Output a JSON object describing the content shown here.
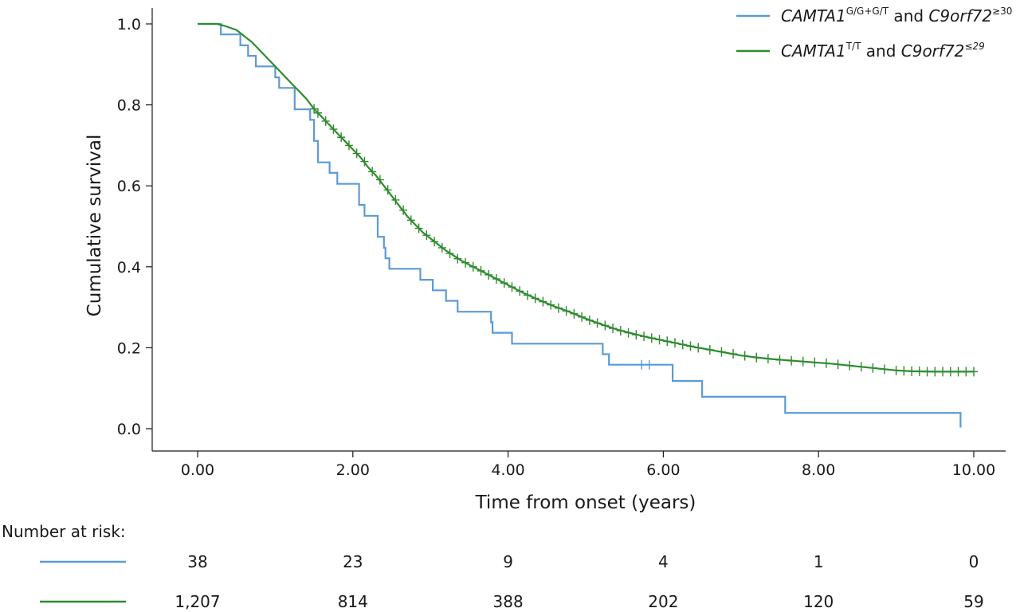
{
  "chart_data": {
    "type": "line",
    "ylabel": "Cumulative survival",
    "xlabel": "Time from onset (years)",
    "xlim": [
      0,
      10
    ],
    "ylim": [
      0,
      1
    ],
    "x_ticks": [
      "0.00",
      "2.00",
      "4.00",
      "6.00",
      "8.00",
      "10.00"
    ],
    "y_ticks": [
      "0.0",
      "0.2",
      "0.4",
      "0.6",
      "0.8",
      "1.0"
    ],
    "grid": false,
    "legend_position": "top-right",
    "series": [
      {
        "color": "#5b9bd5",
        "legend": {
          "name1": "CAMTA1",
          "sup1": "G/G+G/T",
          "mid": " and ",
          "name2": "C9orf72",
          "sup2": "≥30"
        },
        "risk_color": "#5b9bd5",
        "points": [
          [
            0,
            1.0
          ],
          [
            0.3,
            1.0
          ],
          [
            0.3,
            0.974
          ],
          [
            0.55,
            0.974
          ],
          [
            0.55,
            0.947
          ],
          [
            0.65,
            0.947
          ],
          [
            0.65,
            0.921
          ],
          [
            0.75,
            0.921
          ],
          [
            0.75,
            0.895
          ],
          [
            1.0,
            0.895
          ],
          [
            1.0,
            0.868
          ],
          [
            1.05,
            0.868
          ],
          [
            1.05,
            0.842
          ],
          [
            1.25,
            0.842
          ],
          [
            1.25,
            0.789
          ],
          [
            1.45,
            0.789
          ],
          [
            1.45,
            0.763
          ],
          [
            1.5,
            0.763
          ],
          [
            1.5,
            0.711
          ],
          [
            1.55,
            0.711
          ],
          [
            1.55,
            0.658
          ],
          [
            1.7,
            0.658
          ],
          [
            1.7,
            0.632
          ],
          [
            1.8,
            0.632
          ],
          [
            1.8,
            0.605
          ],
          [
            2.08,
            0.605
          ],
          [
            2.08,
            0.553
          ],
          [
            2.15,
            0.553
          ],
          [
            2.15,
            0.526
          ],
          [
            2.32,
            0.526
          ],
          [
            2.32,
            0.474
          ],
          [
            2.4,
            0.474
          ],
          [
            2.4,
            0.447
          ],
          [
            2.42,
            0.447
          ],
          [
            2.42,
            0.421
          ],
          [
            2.47,
            0.421
          ],
          [
            2.47,
            0.395
          ],
          [
            2.87,
            0.395
          ],
          [
            2.87,
            0.368
          ],
          [
            3.03,
            0.368
          ],
          [
            3.03,
            0.342
          ],
          [
            3.2,
            0.342
          ],
          [
            3.2,
            0.316
          ],
          [
            3.35,
            0.316
          ],
          [
            3.35,
            0.289
          ],
          [
            3.78,
            0.289
          ],
          [
            3.78,
            0.263
          ],
          [
            3.8,
            0.263
          ],
          [
            3.8,
            0.237
          ],
          [
            4.05,
            0.237
          ],
          [
            4.05,
            0.21
          ],
          [
            5.22,
            0.21
          ],
          [
            5.22,
            0.184
          ],
          [
            5.3,
            0.184
          ],
          [
            5.3,
            0.158
          ],
          [
            6.12,
            0.158
          ],
          [
            6.12,
            0.118
          ],
          [
            6.5,
            0.118
          ],
          [
            6.5,
            0.079
          ],
          [
            7.57,
            0.079
          ],
          [
            7.57,
            0.039
          ],
          [
            9.83,
            0.039
          ],
          [
            9.83,
            0.003
          ]
        ],
        "censored": [
          [
            5.72,
            0.158
          ],
          [
            5.82,
            0.158
          ]
        ],
        "at_risk": [
          "38",
          "23",
          "9",
          "4",
          "1",
          "0"
        ]
      },
      {
        "color": "#2e8b2e",
        "legend": {
          "name1": "CAMTA1",
          "sup1": "T/T",
          "mid": " and ",
          "name2": "C9orf72",
          "sup2": "≤29"
        },
        "risk_color": "#2e8b2e",
        "points": [
          [
            0,
            1.0
          ],
          [
            0.25,
            1.0
          ],
          [
            0.35,
            0.995
          ],
          [
            0.5,
            0.985
          ],
          [
            0.6,
            0.97
          ],
          [
            0.7,
            0.955
          ],
          [
            0.8,
            0.935
          ],
          [
            0.9,
            0.915
          ],
          [
            1.0,
            0.895
          ],
          [
            1.1,
            0.875
          ],
          [
            1.2,
            0.855
          ],
          [
            1.3,
            0.835
          ],
          [
            1.4,
            0.815
          ],
          [
            1.5,
            0.79
          ],
          [
            1.6,
            0.77
          ],
          [
            1.7,
            0.75
          ],
          [
            1.8,
            0.73
          ],
          [
            1.9,
            0.71
          ],
          [
            2.0,
            0.69
          ],
          [
            2.1,
            0.67
          ],
          [
            2.2,
            0.645
          ],
          [
            2.3,
            0.625
          ],
          [
            2.4,
            0.6
          ],
          [
            2.5,
            0.575
          ],
          [
            2.6,
            0.55
          ],
          [
            2.7,
            0.525
          ],
          [
            2.8,
            0.505
          ],
          [
            2.9,
            0.485
          ],
          [
            3.0,
            0.47
          ],
          [
            3.2,
            0.44
          ],
          [
            3.4,
            0.415
          ],
          [
            3.6,
            0.395
          ],
          [
            3.8,
            0.375
          ],
          [
            4.0,
            0.355
          ],
          [
            4.2,
            0.335
          ],
          [
            4.4,
            0.318
          ],
          [
            4.6,
            0.302
          ],
          [
            4.8,
            0.288
          ],
          [
            5.0,
            0.272
          ],
          [
            5.2,
            0.258
          ],
          [
            5.4,
            0.245
          ],
          [
            5.6,
            0.235
          ],
          [
            5.8,
            0.226
          ],
          [
            6.0,
            0.218
          ],
          [
            6.2,
            0.21
          ],
          [
            6.4,
            0.202
          ],
          [
            6.6,
            0.195
          ],
          [
            6.8,
            0.188
          ],
          [
            7.0,
            0.181
          ],
          [
            7.2,
            0.176
          ],
          [
            7.4,
            0.172
          ],
          [
            7.6,
            0.169
          ],
          [
            7.8,
            0.166
          ],
          [
            8.0,
            0.163
          ],
          [
            8.2,
            0.16
          ],
          [
            8.4,
            0.156
          ],
          [
            8.6,
            0.152
          ],
          [
            8.8,
            0.148
          ],
          [
            9.0,
            0.144
          ],
          [
            9.2,
            0.142
          ],
          [
            9.5,
            0.141
          ],
          [
            10.0,
            0.141
          ]
        ],
        "censored": [
          [
            1.5,
            0.79
          ],
          [
            1.55,
            0.78
          ],
          [
            1.65,
            0.76
          ],
          [
            1.75,
            0.74
          ],
          [
            1.85,
            0.72
          ],
          [
            1.95,
            0.7
          ],
          [
            2.05,
            0.68
          ],
          [
            2.15,
            0.66
          ],
          [
            2.25,
            0.635
          ],
          [
            2.35,
            0.615
          ],
          [
            2.45,
            0.59
          ],
          [
            2.55,
            0.565
          ],
          [
            2.65,
            0.54
          ],
          [
            2.75,
            0.515
          ],
          [
            2.85,
            0.495
          ],
          [
            2.95,
            0.478
          ],
          [
            3.05,
            0.462
          ],
          [
            3.15,
            0.447
          ],
          [
            3.25,
            0.433
          ],
          [
            3.35,
            0.42
          ],
          [
            3.45,
            0.41
          ],
          [
            3.55,
            0.4
          ],
          [
            3.65,
            0.39
          ],
          [
            3.75,
            0.38
          ],
          [
            3.85,
            0.37
          ],
          [
            3.95,
            0.36
          ],
          [
            4.05,
            0.35
          ],
          [
            4.15,
            0.34
          ],
          [
            4.25,
            0.33
          ],
          [
            4.35,
            0.322
          ],
          [
            4.45,
            0.314
          ],
          [
            4.55,
            0.306
          ],
          [
            4.65,
            0.298
          ],
          [
            4.75,
            0.291
          ],
          [
            4.85,
            0.284
          ],
          [
            4.95,
            0.276
          ],
          [
            5.05,
            0.268
          ],
          [
            5.15,
            0.261
          ],
          [
            5.25,
            0.255
          ],
          [
            5.35,
            0.248
          ],
          [
            5.45,
            0.242
          ],
          [
            5.55,
            0.237
          ],
          [
            5.65,
            0.232
          ],
          [
            5.75,
            0.228
          ],
          [
            5.85,
            0.224
          ],
          [
            5.95,
            0.22
          ],
          [
            6.05,
            0.216
          ],
          [
            6.15,
            0.212
          ],
          [
            6.25,
            0.208
          ],
          [
            6.35,
            0.204
          ],
          [
            6.45,
            0.2
          ],
          [
            6.6,
            0.195
          ],
          [
            6.75,
            0.19
          ],
          [
            6.9,
            0.185
          ],
          [
            7.05,
            0.18
          ],
          [
            7.2,
            0.176
          ],
          [
            7.35,
            0.173
          ],
          [
            7.5,
            0.17
          ],
          [
            7.65,
            0.168
          ],
          [
            7.8,
            0.166
          ],
          [
            7.95,
            0.164
          ],
          [
            8.1,
            0.162
          ],
          [
            8.25,
            0.159
          ],
          [
            8.4,
            0.156
          ],
          [
            8.55,
            0.153
          ],
          [
            8.7,
            0.15
          ],
          [
            8.85,
            0.147
          ],
          [
            9.0,
            0.144
          ],
          [
            9.1,
            0.143
          ],
          [
            9.2,
            0.142
          ],
          [
            9.3,
            0.142
          ],
          [
            9.4,
            0.141
          ],
          [
            9.5,
            0.141
          ],
          [
            9.6,
            0.141
          ],
          [
            9.7,
            0.141
          ],
          [
            9.8,
            0.141
          ],
          [
            9.9,
            0.141
          ],
          [
            10.0,
            0.141
          ]
        ],
        "at_risk": [
          "1,207",
          "814",
          "388",
          "202",
          "120",
          "59"
        ]
      }
    ],
    "risk_table_title": "Number at risk:"
  }
}
